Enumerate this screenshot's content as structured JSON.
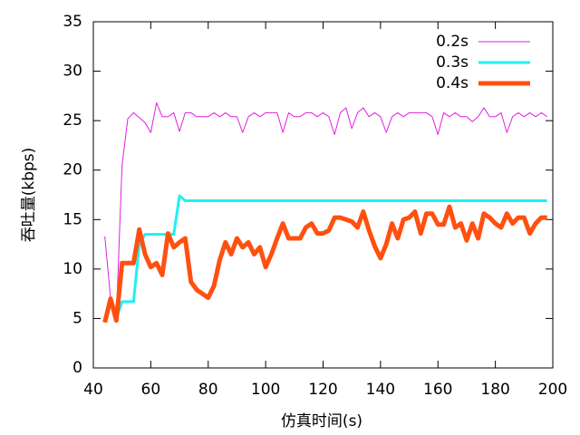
{
  "chart_data": {
    "type": "line",
    "xlabel": "仿真时间(s)",
    "ylabel": "吞吐量(kbps)",
    "x": [
      44,
      46,
      48,
      50,
      52,
      54,
      56,
      58,
      60,
      62,
      64,
      66,
      68,
      70,
      72,
      74,
      76,
      78,
      80,
      82,
      84,
      86,
      88,
      90,
      92,
      94,
      96,
      98,
      100,
      102,
      104,
      106,
      108,
      110,
      112,
      114,
      116,
      118,
      120,
      122,
      124,
      126,
      128,
      130,
      132,
      134,
      136,
      138,
      140,
      142,
      144,
      146,
      148,
      150,
      152,
      154,
      156,
      158,
      160,
      162,
      164,
      166,
      168,
      170,
      172,
      174,
      176,
      178,
      180,
      182,
      184,
      186,
      188,
      190,
      192,
      194,
      196,
      198
    ],
    "series": [
      {
        "name": "0.2s",
        "color": "#e020e0",
        "line_width": 1,
        "values": [
          13.3,
          7,
          5,
          20.5,
          25.2,
          25.8,
          25.3,
          24.8,
          23.8,
          26.8,
          25.4,
          25.4,
          25.8,
          23.9,
          25.8,
          25.8,
          25.4,
          25.4,
          25.4,
          25.8,
          25.4,
          25.8,
          25.4,
          25.4,
          23.8,
          25.4,
          25.8,
          25.4,
          25.8,
          25.8,
          25.8,
          23.8,
          25.8,
          25.4,
          25.4,
          25.8,
          25.8,
          25.4,
          25.8,
          25.4,
          23.6,
          25.8,
          26.3,
          24.2,
          25.8,
          26.3,
          25.4,
          25.8,
          25.4,
          23.8,
          25.4,
          25.8,
          25.4,
          25.8,
          25.8,
          25.8,
          25.8,
          25.4,
          23.6,
          25.8,
          25.4,
          25.8,
          25.4,
          25.4,
          24.9,
          25.4,
          26.3,
          25.4,
          25.4,
          25.8,
          23.8,
          25.4,
          25.8,
          25.4,
          25.8,
          25.4,
          25.8,
          25.4
        ]
      },
      {
        "name": "0.3s",
        "color": "#20f0f0",
        "line_width": 3,
        "values": [
          null,
          null,
          5,
          6.7,
          6.7,
          6.7,
          12.5,
          13.5,
          13.5,
          13.5,
          13.5,
          13.5,
          13.5,
          17.4,
          16.9,
          16.9,
          16.9,
          16.9,
          16.9,
          16.9,
          16.9,
          16.9,
          16.9,
          16.9,
          16.9,
          16.9,
          16.9,
          16.9,
          16.9,
          16.9,
          16.9,
          16.9,
          16.9,
          16.9,
          16.9,
          16.9,
          16.9,
          16.9,
          16.9,
          16.9,
          16.9,
          16.9,
          16.9,
          16.9,
          16.9,
          16.9,
          16.9,
          16.9,
          16.9,
          16.9,
          16.9,
          16.9,
          16.9,
          16.9,
          16.9,
          16.9,
          16.9,
          16.9,
          16.9,
          16.9,
          16.9,
          16.9,
          16.9,
          16.9,
          16.9,
          16.9,
          16.9,
          16.9,
          16.9,
          16.9,
          16.9,
          16.9,
          16.9,
          16.9,
          16.9,
          16.9,
          16.9,
          16.9
        ]
      },
      {
        "name": "0.4s",
        "color": "#ff5010",
        "line_width": 5,
        "values": [
          4.6,
          7,
          4.8,
          10.6,
          10.6,
          10.6,
          14,
          11.5,
          10.2,
          10.6,
          9.4,
          13.6,
          12.2,
          12.7,
          13.1,
          8.7,
          7.9,
          7.5,
          7.1,
          8.3,
          10.9,
          12.7,
          11.5,
          13.1,
          12.2,
          12.7,
          11.5,
          12.2,
          10.2,
          11.5,
          13.1,
          14.6,
          13.1,
          13.1,
          13.1,
          14.2,
          14.6,
          13.6,
          13.6,
          13.9,
          15.2,
          15.2,
          15,
          14.8,
          14.2,
          15.8,
          13.9,
          12.3,
          11.1,
          12.5,
          14.6,
          13.1,
          15,
          15.2,
          15.8,
          13.6,
          15.6,
          15.6,
          14.5,
          14.5,
          16.3,
          14.2,
          14.6,
          12.9,
          14.6,
          13.1,
          15.6,
          15.2,
          14.6,
          14.2,
          15.6,
          14.6,
          15.2,
          15.2,
          13.6,
          14.6,
          15.2,
          15.2
        ]
      }
    ],
    "xlim": [
      40,
      200
    ],
    "xticks": [
      40,
      60,
      80,
      100,
      120,
      140,
      160,
      180,
      200
    ],
    "ylim": [
      0,
      35
    ],
    "yticks": [
      0,
      5,
      10,
      15,
      20,
      25,
      30,
      35
    ],
    "legend": "top-right"
  }
}
